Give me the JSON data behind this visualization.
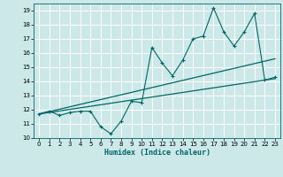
{
  "title": "",
  "xlabel": "Humidex (Indice chaleur)",
  "ylabel": "",
  "bg_color": "#cde8e8",
  "grid_color": "#ffffff",
  "line_color": "#006666",
  "xlim": [
    -0.5,
    23.5
  ],
  "ylim": [
    10,
    19.5
  ],
  "xticks": [
    0,
    1,
    2,
    3,
    4,
    5,
    6,
    7,
    8,
    9,
    10,
    11,
    12,
    13,
    14,
    15,
    16,
    17,
    18,
    19,
    20,
    21,
    22,
    23
  ],
  "yticks": [
    10,
    11,
    12,
    13,
    14,
    15,
    16,
    17,
    18,
    19
  ],
  "line1_x": [
    0,
    1,
    2,
    3,
    4,
    5,
    6,
    7,
    8,
    9,
    10,
    11,
    12,
    13,
    14,
    15,
    16,
    17,
    18,
    19,
    20,
    21,
    22,
    23
  ],
  "line1_y": [
    11.7,
    11.9,
    11.6,
    11.8,
    11.9,
    11.9,
    10.8,
    10.3,
    11.2,
    12.6,
    12.5,
    16.4,
    15.3,
    14.4,
    15.5,
    17.0,
    17.2,
    19.2,
    17.5,
    16.5,
    17.5,
    18.8,
    14.1,
    14.3
  ],
  "line2_x": [
    0,
    23
  ],
  "line2_y": [
    11.7,
    15.6
  ],
  "line3_x": [
    0,
    23
  ],
  "line3_y": [
    11.7,
    14.2
  ],
  "xlabel_fontsize": 6,
  "tick_fontsize": 5
}
